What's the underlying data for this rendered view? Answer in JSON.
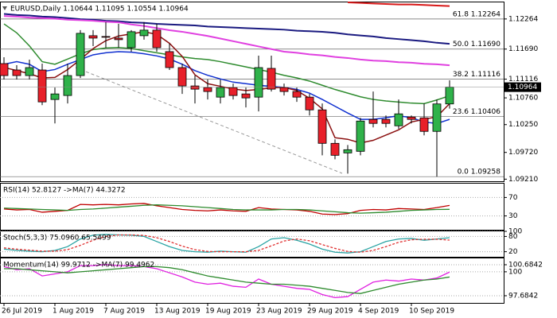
{
  "chart_data": [
    {
      "type": "candlestick",
      "title": "EURUSD,Daily  1.10644 1.11095 1.10554 1.10964",
      "categories": [
        "26 Jul 2019",
        null,
        null,
        null,
        "1 Aug 2019",
        null,
        null,
        null,
        "7 Aug 2019",
        null,
        null,
        null,
        "13 Aug 2019",
        null,
        null,
        null,
        "19 Aug 2019",
        null,
        null,
        null,
        "23 Aug 2019",
        null,
        null,
        null,
        "29 Aug 2019",
        null,
        null,
        null,
        "4 Sep 2019",
        null,
        null,
        null,
        "10 Sep 2019",
        null,
        null,
        null
      ],
      "open": [
        1.11413,
        1.11291,
        1.11185,
        1.11291,
        1.10729,
        1.10805,
        1.11185,
        1.11945,
        1.1193,
        1.11899,
        1.11717,
        1.11945,
        1.12051,
        1.11641,
        1.11337,
        1.10987,
        1.10957,
        1.10774,
        1.10957,
        1.10835,
        1.10774,
        1.11322,
        1.10957,
        1.10881,
        1.10774,
        1.10531,
        1.09893,
        1.0971,
        1.09741,
        1.10349,
        1.10349,
        1.10227,
        1.10394,
        1.10379,
        1.10121,
        1.10644
      ],
      "high": [
        1.11534,
        1.11382,
        1.11489,
        1.11413,
        1.10957,
        1.11413,
        1.12051,
        1.12051,
        1.12203,
        1.12173,
        1.12051,
        1.12203,
        1.12173,
        1.11793,
        1.11413,
        1.11185,
        1.11109,
        1.11109,
        1.11033,
        1.10957,
        1.11565,
        1.11565,
        1.11033,
        1.10957,
        1.10835,
        1.10653,
        1.09969,
        1.09862,
        1.10379,
        1.10881,
        1.10425,
        1.10729,
        1.10425,
        1.10653,
        1.10729,
        1.11095
      ],
      "low": [
        1.11109,
        1.11109,
        1.11109,
        1.10622,
        1.10273,
        1.10653,
        1.11139,
        1.11747,
        1.11717,
        1.11717,
        1.11641,
        1.11869,
        1.11641,
        1.11291,
        1.10835,
        1.10653,
        1.10729,
        1.10653,
        1.10729,
        1.10577,
        1.10501,
        1.10881,
        1.10805,
        1.10683,
        1.10425,
        1.09665,
        1.09589,
        1.09315,
        1.09665,
        1.10197,
        1.10197,
        1.10166,
        1.10273,
        1.10045,
        1.09258,
        1.10554
      ],
      "close": [
        1.11185,
        1.11185,
        1.11337,
        1.10683,
        1.10835,
        1.11185,
        1.1199,
        1.11899,
        1.11925,
        1.11869,
        1.12021,
        1.12051,
        1.11717,
        1.11337,
        1.10987,
        1.10926,
        1.10881,
        1.10957,
        1.10805,
        1.10759,
        1.11337,
        1.10926,
        1.10881,
        1.10774,
        1.10531,
        1.09893,
        1.09665,
        1.09771,
        1.10318,
        1.10273,
        1.10273,
        1.10455,
        1.10349,
        1.10121,
        1.10644,
        1.10964
      ],
      "up_color": "#2fb24a",
      "down_color": "#e8202a",
      "series": [
        {
          "color": "#d81818",
          "values": [
            null,
            null,
            null,
            null,
            null,
            null,
            null,
            null,
            null,
            null,
            null,
            null,
            null,
            null,
            null,
            null,
            null,
            null,
            null,
            null,
            null,
            null,
            null,
            null,
            null,
            null,
            null,
            1.1258,
            1.1257,
            1.1256,
            1.1255,
            1.1254,
            1.1254,
            1.1253,
            1.1252,
            1.1251
          ]
        },
        {
          "color": "#1a1a80",
          "values": [
            1.1236,
            1.1234,
            1.1233,
            1.1231,
            1.123,
            1.1228,
            1.1226,
            1.1225,
            1.1223,
            1.1222,
            1.122,
            1.1219,
            1.1217,
            1.1216,
            1.1215,
            1.1214,
            1.1212,
            1.1211,
            1.121,
            1.1209,
            1.1208,
            1.1207,
            1.1206,
            1.1204,
            1.1203,
            1.1202,
            1.12,
            1.1197,
            1.1195,
            1.1193,
            1.119,
            1.1188,
            1.1186,
            1.1184,
            1.1181,
            1.1179
          ]
        },
        {
          "color": "#e040e0",
          "values": [
            1.1232,
            1.1231,
            1.1229,
            1.1228,
            1.1227,
            1.1225,
            1.1224,
            1.1223,
            1.1221,
            1.122,
            1.1216,
            1.1213,
            1.1209,
            1.1205,
            1.1202,
            1.1198,
            1.1194,
            1.1189,
            1.1184,
            1.1179,
            1.1174,
            1.1169,
            1.1164,
            1.1162,
            1.1159,
            1.1157,
            1.1154,
            1.1152,
            1.1149,
            1.1147,
            1.1146,
            1.1144,
            1.1143,
            1.1141,
            1.114,
            1.1138
          ]
        },
        {
          "color": "#2e8b2e",
          "values": [
            1.1217,
            1.12,
            1.1175,
            1.1145,
            1.114,
            1.115,
            1.116,
            1.1168,
            1.1171,
            1.1172,
            1.117,
            1.1166,
            1.1162,
            1.1158,
            1.1154,
            1.1151,
            1.1149,
            1.1145,
            1.114,
            1.1135,
            1.113,
            1.1125,
            1.1119,
            1.1114,
            1.1108,
            1.11,
            1.1092,
            1.1085,
            1.1078,
            1.1073,
            1.107,
            1.1068,
            1.1066,
            1.1065,
            1.1072,
            1.108
          ]
        },
        {
          "color": "#1030d0",
          "values": [
            1.114,
            1.1145,
            1.114,
            1.1126,
            1.113,
            1.114,
            1.1149,
            1.1158,
            1.1162,
            1.1164,
            1.1163,
            1.116,
            1.1156,
            1.115,
            1.114,
            1.1128,
            1.1119,
            1.1112,
            1.1106,
            1.1103,
            1.11,
            1.1098,
            1.1096,
            1.1092,
            1.1085,
            1.1073,
            1.106,
            1.1047,
            1.1035,
            1.1035,
            1.1038,
            1.1042,
            1.1038,
            1.103,
            1.1027,
            1.1035
          ]
        },
        {
          "color": "#8b1010",
          "values": [
            1.1134,
            1.1128,
            1.1122,
            1.1114,
            1.1115,
            1.113,
            1.1149,
            1.117,
            1.1185,
            1.1194,
            1.1198,
            1.1202,
            1.1197,
            1.118,
            1.1155,
            1.112,
            1.1103,
            1.1098,
            1.1093,
            1.109,
            1.1092,
            1.1095,
            1.1096,
            1.109,
            1.1075,
            1.1055,
            1.1,
            1.0997,
            1.099,
            1.0995,
            1.1005,
            1.1015,
            1.103,
            1.1035,
            1.104,
            1.1065
          ]
        }
      ],
      "fib_levels": [
        {
          "value": 1.12264,
          "label": "61.8 1.12264"
        },
        {
          "value": 1.1169,
          "label": "50.0 1.11690"
        },
        {
          "value": 1.11116,
          "label": "38.2 1.11116"
        },
        {
          "value": 1.10406,
          "label": "23.6 1.10406"
        },
        {
          "value": 1.09258,
          "label": "0.0 1.09258"
        }
      ],
      "ylim": [
        1.0917,
        1.1258
      ],
      "yticks": [
        1.12264,
        {
          "value": 1.1169,
          "label": "1.11690"
        },
        1.11116,
        {
          "value": 1.1076,
          "label": "1.10760"
        },
        {
          "value": 1.1025,
          "label": "1.10250"
        },
        {
          "value": 1.0972,
          "label": "1.09720"
        },
        {
          "value": 1.0921,
          "label": "1.09210"
        }
      ]
    },
    {
      "type": "line",
      "title": "RSI(14) 52.8127 ->MA(7) 44.3272",
      "ylim": [
        0,
        100
      ],
      "yticks": [
        70,
        30
      ],
      "series": [
        {
          "color": "#c00000",
          "values": [
            45,
            43,
            44,
            38,
            40,
            42,
            55,
            54,
            55,
            54,
            56,
            57,
            52,
            48,
            44,
            42,
            41,
            43,
            41,
            40,
            48,
            45,
            44,
            43,
            40,
            34,
            33,
            35,
            42,
            44,
            43,
            46,
            45,
            44,
            48,
            52.8127
          ]
        },
        {
          "color": "#2e8b2e",
          "values": [
            47,
            46,
            45,
            44,
            43,
            42,
            44,
            45,
            47,
            49,
            51,
            53,
            54,
            53,
            52,
            50,
            48,
            46,
            44,
            43,
            43,
            43,
            44,
            44,
            43,
            41,
            39,
            37,
            36,
            37,
            38,
            40,
            42,
            43,
            44,
            44.3272
          ]
        }
      ]
    },
    {
      "type": "line",
      "title": "Stoch(5,3,3) 75.0960 65.5499",
      "ylim": [
        0,
        100
      ],
      "yticks": [
        100,
        80,
        20
      ],
      "series": [
        {
          "color": "#2aa4a4",
          "values": [
            30,
            25,
            22,
            20,
            25,
            40,
            70,
            85,
            88,
            86,
            85,
            80,
            60,
            40,
            25,
            20,
            18,
            22,
            20,
            18,
            40,
            70,
            75,
            65,
            50,
            30,
            18,
            15,
            20,
            40,
            60,
            70,
            72,
            65,
            70,
            75.096
          ]
        },
        {
          "color": "#e03030",
          "dashed": true,
          "values": [
            35,
            30,
            26,
            22,
            22,
            28,
            45,
            65,
            80,
            86,
            86,
            84,
            75,
            60,
            42,
            28,
            21,
            20,
            20,
            20,
            25,
            43,
            62,
            70,
            63,
            48,
            33,
            21,
            18,
            25,
            40,
            57,
            67,
            69,
            69,
            65.5499
          ]
        }
      ]
    },
    {
      "type": "line",
      "title": "Momentum(14) 99.9712 ->MA(7) 99.4962",
      "ylim": [
        96.99,
        101.3
      ],
      "yticks": [
        100.6842,
        100,
        97.6842
      ],
      "series": [
        {
          "color": "#e020e0",
          "values": [
            100.5,
            100.2,
            100.3,
            99.6,
            99.8,
            100.0,
            100.6,
            100.6,
            100.7,
            100.6,
            100.6,
            100.5,
            100.3,
            99.9,
            99.5,
            99.0,
            98.8,
            98.9,
            98.6,
            98.5,
            99.3,
            98.8,
            98.6,
            98.4,
            98.3,
            97.8,
            97.5,
            97.6,
            98.3,
            99.0,
            99.2,
            99.1,
            99.3,
            99.2,
            99.4,
            99.9712
          ]
        },
        {
          "color": "#2e8b2e",
          "values": [
            100.3,
            100.3,
            100.2,
            100.1,
            100.0,
            99.9,
            100.0,
            100.1,
            100.2,
            100.3,
            100.4,
            100.5,
            100.5,
            100.4,
            100.2,
            99.9,
            99.6,
            99.4,
            99.2,
            99.0,
            98.9,
            98.8,
            98.8,
            98.7,
            98.6,
            98.4,
            98.2,
            98.0,
            97.9,
            98.2,
            98.5,
            98.8,
            99.0,
            99.2,
            99.3,
            99.4962
          ]
        }
      ]
    }
  ]
}
